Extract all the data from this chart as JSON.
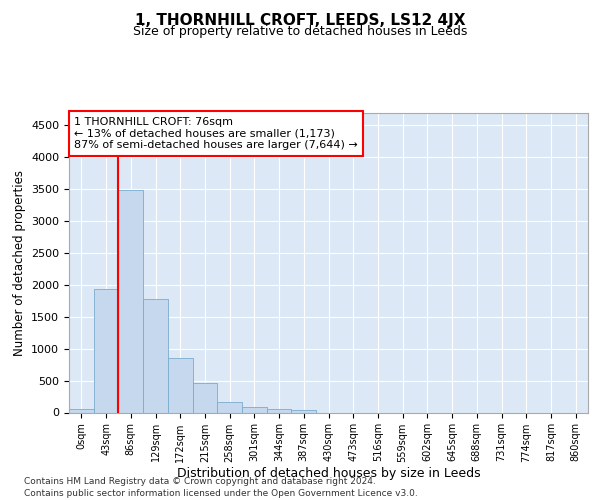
{
  "title": "1, THORNHILL CROFT, LEEDS, LS12 4JX",
  "subtitle": "Size of property relative to detached houses in Leeds",
  "xlabel": "Distribution of detached houses by size in Leeds",
  "ylabel": "Number of detached properties",
  "bar_color": "#c5d8ed",
  "bar_edge_color": "#7aabce",
  "background_color": "#dce8f5",
  "grid_color": "#ffffff",
  "footer_line1": "Contains HM Land Registry data © Crown copyright and database right 2024.",
  "footer_line2": "Contains public sector information licensed under the Open Government Licence v3.0.",
  "categories": [
    "0sqm",
    "43sqm",
    "86sqm",
    "129sqm",
    "172sqm",
    "215sqm",
    "258sqm",
    "301sqm",
    "344sqm",
    "387sqm",
    "430sqm",
    "473sqm",
    "516sqm",
    "559sqm",
    "602sqm",
    "645sqm",
    "688sqm",
    "731sqm",
    "774sqm",
    "817sqm",
    "860sqm"
  ],
  "bar_values": [
    50,
    1930,
    3490,
    1780,
    850,
    460,
    160,
    90,
    55,
    45,
    0,
    0,
    0,
    0,
    0,
    0,
    0,
    0,
    0,
    0,
    0
  ],
  "ylim": [
    0,
    4700
  ],
  "yticks": [
    0,
    500,
    1000,
    1500,
    2000,
    2500,
    3000,
    3500,
    4000,
    4500
  ],
  "red_line_x": 1.5,
  "annotation_line1": "1 THORNHILL CROFT: 76sqm",
  "annotation_line2": "← 13% of detached houses are smaller (1,173)",
  "annotation_line3": "87% of semi-detached houses are larger (7,644) →"
}
